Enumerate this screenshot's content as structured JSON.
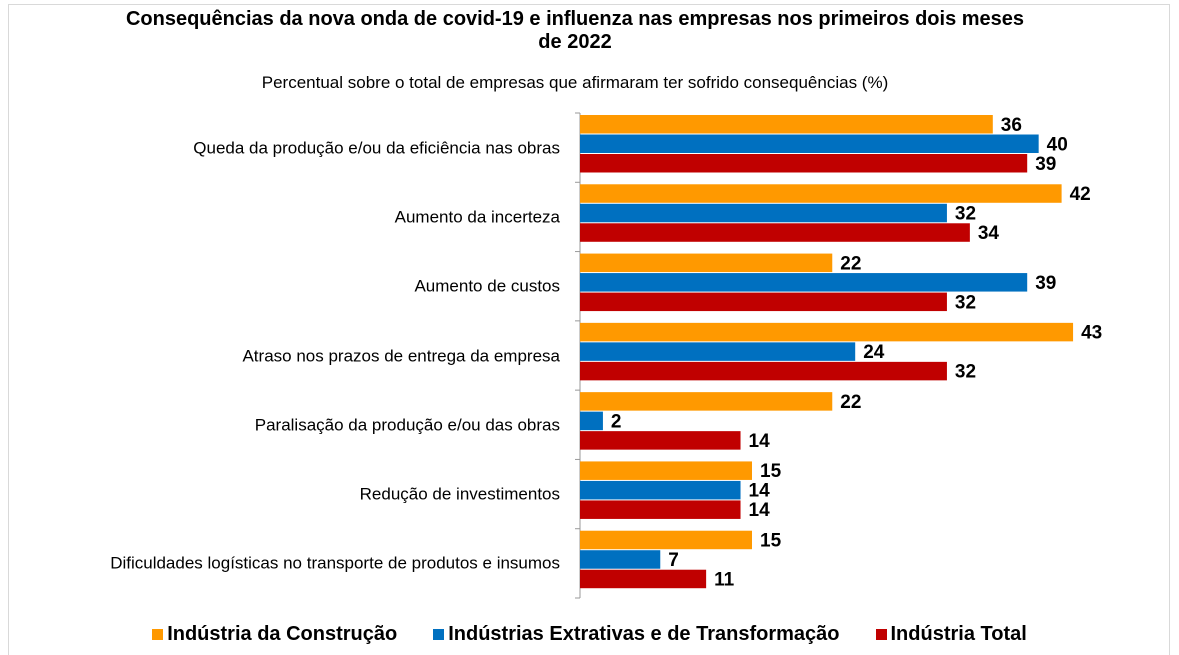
{
  "chart_data": {
    "type": "barh",
    "title": "Consequências da nova onda de covid-19 e influenza nas empresas nos primeiros dois meses de 2022",
    "subtitle": "Percentual sobre o total de empresas que afirmaram ter sofrido consequências (%)",
    "categories": [
      "Queda da produção e/ou da eficiência nas obras",
      "Aumento da incerteza",
      "Aumento de custos",
      "Atraso nos prazos de entrega da empresa",
      "Paralisação da produção e/ou das obras",
      "Redução de investimentos",
      "Dificuldades logísticas no transporte de produtos e insumos"
    ],
    "series": [
      {
        "name": "Indústria da Construção",
        "color": "#ff9900",
        "values": [
          36,
          42,
          22,
          43,
          22,
          15,
          15
        ]
      },
      {
        "name": "Indústrias Extrativas e de Transformação",
        "color": "#0070c0",
        "values": [
          40,
          32,
          39,
          24,
          2,
          14,
          7
        ]
      },
      {
        "name": "Indústria Total",
        "color": "#c00000",
        "values": [
          39,
          34,
          32,
          32,
          14,
          14,
          11
        ]
      }
    ],
    "xlim": [
      0,
      45
    ],
    "legend": "bottom"
  }
}
